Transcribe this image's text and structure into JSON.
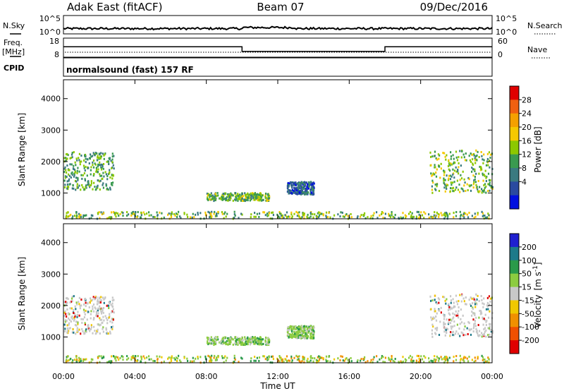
{
  "header": {
    "title": "Adak East (fitACF)",
    "beam": "Beam 07",
    "date": "09/Dec/2016"
  },
  "noise_panel": {
    "left_label": "N.Sky",
    "right_label": "N.Search",
    "left_ticks": [
      "10^5",
      "10^0"
    ],
    "right_ticks": [
      "10^5",
      "10^0"
    ]
  },
  "freq_panel": {
    "left_label_line1": "Freq.",
    "left_label_line2": "[MHz]",
    "right_label": "Nave",
    "left_ticks": [
      "18",
      "8"
    ],
    "right_ticks": [
      "60",
      "0"
    ]
  },
  "cpid_panel": {
    "label": "CPID",
    "program": "normalsound (fast) 157 RF"
  },
  "power_panel": {
    "ylabel": "Slant Range [km]",
    "colorbar_label": "Power [dB]",
    "colorbar_ticks": [
      "28",
      "24",
      "20",
      "16",
      "12",
      "8",
      "4"
    ],
    "colorbar_colors": [
      "#e00000",
      "#f06010",
      "#f5a000",
      "#f5c800",
      "#8cc800",
      "#3a9a50",
      "#3a7a80",
      "#2a4aa0",
      "#0010e0"
    ]
  },
  "velocity_panel": {
    "ylabel": "Slant Range [km]",
    "colorbar_label_main": "Velocity",
    "colorbar_label_unit": "[m s",
    "colorbar_label_exp": "-1",
    "colorbar_label_close": "]",
    "colorbar_ticks": [
      "200",
      "100",
      "50",
      "15",
      "-15",
      "-50",
      "-100",
      "-200"
    ],
    "colorbar_colors": [
      "#2020d0",
      "#1e7a8a",
      "#2a9a4a",
      "#8ccc40",
      "#c8c8c8",
      "#f0c800",
      "#f09000",
      "#f05000",
      "#e00000"
    ]
  },
  "chart_data": {
    "type": "heatmap",
    "xlabel": "Time UT",
    "x_tick_labels": [
      "00:00",
      "04:00",
      "08:00",
      "12:00",
      "16:00",
      "20:00",
      "00:00"
    ],
    "xlim_hours": [
      0,
      24
    ],
    "ylim_km": [
      180,
      4600
    ],
    "y_tick_labels": [
      "1000",
      "2000",
      "3000",
      "4000"
    ],
    "y_ticks_km": [
      1000,
      2000,
      3000,
      4000
    ],
    "frequency_mhz_segments": [
      {
        "start_h": 0,
        "end_h": 10,
        "freq": 13.5
      },
      {
        "start_h": 10,
        "end_h": 18,
        "freq": 11
      },
      {
        "start_h": 18,
        "end_h": 24,
        "freq": 13.5
      }
    ],
    "nave_approx": 8,
    "echo_regions": [
      {
        "name": "early-evening-patch",
        "start_h": 0.0,
        "end_h": 2.8,
        "range_km": [
          1100,
          2300
        ],
        "power_db": 12,
        "velocity": "low"
      },
      {
        "name": "midday-patch",
        "start_h": 8.0,
        "end_h": 11.5,
        "range_km": [
          750,
          1000
        ],
        "power_db": 14,
        "velocity": 40
      },
      {
        "name": "small-patch",
        "start_h": 12.5,
        "end_h": 14.0,
        "range_km": [
          950,
          1350
        ],
        "power_db": 6,
        "velocity": 30
      },
      {
        "name": "late-evening-patch",
        "start_h": 20.5,
        "end_h": 24.0,
        "range_km": [
          1000,
          2350
        ],
        "power_db": 14,
        "velocity": "low"
      },
      {
        "name": "near-range-clutter",
        "start_h": 0.0,
        "end_h": 24.0,
        "range_km": [
          180,
          400
        ],
        "power_db": 10,
        "velocity": "mixed"
      }
    ]
  }
}
